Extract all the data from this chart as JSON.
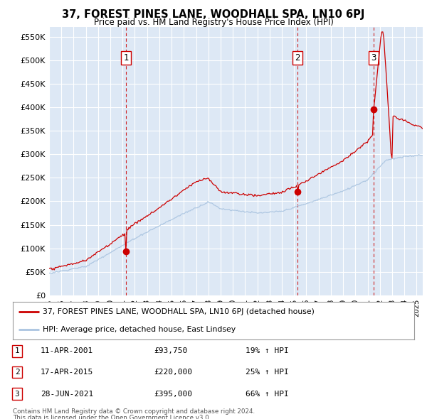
{
  "title": "37, FOREST PINES LANE, WOODHALL SPA, LN10 6PJ",
  "subtitle": "Price paid vs. HM Land Registry's House Price Index (HPI)",
  "ylim": [
    0,
    570000
  ],
  "yticks": [
    0,
    50000,
    100000,
    150000,
    200000,
    250000,
    300000,
    350000,
    400000,
    450000,
    500000,
    550000
  ],
  "xlim_start": 1995.0,
  "xlim_end": 2025.5,
  "plot_bg_color": "#dde8f5",
  "grid_color": "#ffffff",
  "red_line_color": "#cc0000",
  "blue_line_color": "#aac4e0",
  "marker_dashed_color": "#cc0000",
  "transactions": [
    {
      "num": 1,
      "date_str": "11-APR-2001",
      "price": 93750,
      "year": 2001.28
    },
    {
      "num": 2,
      "date_str": "17-APR-2015",
      "price": 220000,
      "year": 2015.29
    },
    {
      "num": 3,
      "date_str": "28-JUN-2021",
      "price": 395000,
      "year": 2021.49
    }
  ],
  "legend_entries": [
    "37, FOREST PINES LANE, WOODHALL SPA, LN10 6PJ (detached house)",
    "HPI: Average price, detached house, East Lindsey"
  ],
  "footnote1": "Contains HM Land Registry data © Crown copyright and database right 2024.",
  "footnote2": "This data is licensed under the Open Government Licence v3.0.",
  "table_rows": [
    {
      "num": 1,
      "date": "11-APR-2001",
      "price": "£93,750",
      "pct": "19% ↑ HPI"
    },
    {
      "num": 2,
      "date": "17-APR-2015",
      "price": "£220,000",
      "pct": "25% ↑ HPI"
    },
    {
      "num": 3,
      "date": "28-JUN-2021",
      "price": "£395,000",
      "pct": "66% ↑ HPI"
    }
  ]
}
